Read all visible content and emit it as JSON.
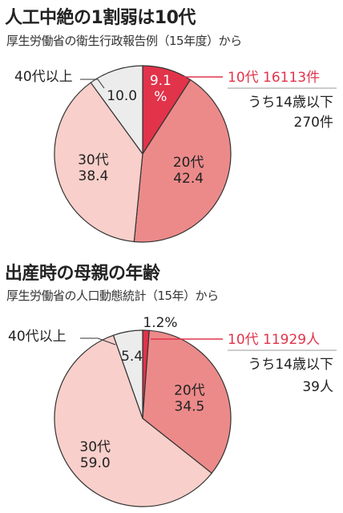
{
  "chart_data": [
    {
      "type": "pie",
      "title": "人工中絶の1割弱は10代",
      "subtitle": "厚生労働省の衛生行政報告例（15年度）から",
      "categories": [
        "10代",
        "20代",
        "30代",
        "40代以上"
      ],
      "values": [
        9.1,
        42.4,
        38.4,
        10.0
      ],
      "slice_labels": [
        "9.1\n%",
        "20代\n42.4",
        "30代\n38.4",
        "10.0"
      ],
      "outside_labels": {
        "age40": "40代以上"
      },
      "callout": {
        "line1": "10代 16113件",
        "line2": "うち14歳以下",
        "line3": "270件"
      },
      "colors": [
        "#e1334a",
        "#ec8a8a",
        "#f8cfca",
        "#ececec"
      ]
    },
    {
      "type": "pie",
      "title": "出産時の母親の年齢",
      "subtitle": "厚生労働省の人口動態統計（15年）から",
      "categories": [
        "10代",
        "20代",
        "30代",
        "40代以上"
      ],
      "values": [
        1.2,
        34.5,
        59.0,
        5.4
      ],
      "slice_labels": [
        "1.2%",
        "20代\n34.5",
        "30代\n59.0",
        "5.4"
      ],
      "outside_labels": {
        "age40": "40代以上"
      },
      "callout": {
        "line1": "10代 11929人",
        "line2": "うち14歳以下",
        "line3": "39人"
      },
      "colors": [
        "#e1334a",
        "#ec8a8a",
        "#f8cfca",
        "#ececec"
      ]
    }
  ]
}
